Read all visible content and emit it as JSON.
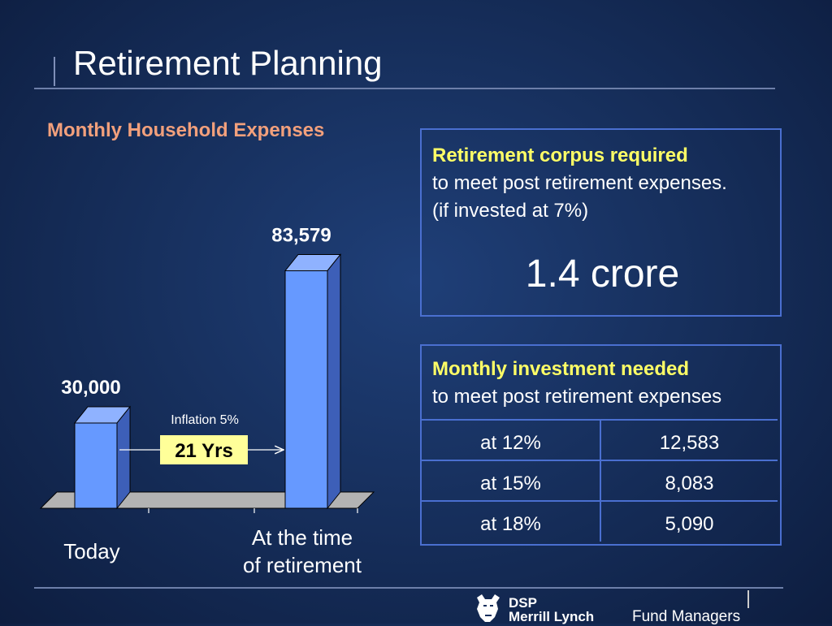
{
  "slide": {
    "title": "Retirement Planning"
  },
  "chart_data": {
    "type": "bar",
    "title": "Monthly Household Expenses",
    "categories": [
      "Today",
      "At the time of retirement"
    ],
    "category_lines": [
      [
        "Today"
      ],
      [
        "At the time",
        "of retirement"
      ]
    ],
    "values": [
      30000,
      83579
    ],
    "value_labels": [
      "30,000",
      "83,579"
    ],
    "ylim": [
      0,
      100000
    ],
    "bar_color": "#6699ff",
    "annotation": {
      "label": "Inflation 5%",
      "badge": "21 Yrs",
      "badge_color": "#ffff99"
    }
  },
  "corpus_panel": {
    "heading": "Retirement corpus required",
    "line1": "to meet post retirement expenses.",
    "line2": "(if invested at 7%)",
    "amount": "1.4 crore"
  },
  "investment_panel": {
    "heading": "Monthly investment needed",
    "line1": "to meet post retirement expenses",
    "rows": [
      {
        "rate": "at 12%",
        "amount": "12,583"
      },
      {
        "rate": "at 15%",
        "amount": "8,083"
      },
      {
        "rate": "at 18%",
        "amount": "5,090"
      }
    ]
  },
  "logo": {
    "line1": "DSP",
    "line2": "Merrill Lynch",
    "line3": "Fund Managers",
    "icon": "bull-icon"
  },
  "colors": {
    "heading_accent": "#ffff66",
    "chart_title": "#f2a07c",
    "panel_border": "#4a6fd0"
  }
}
